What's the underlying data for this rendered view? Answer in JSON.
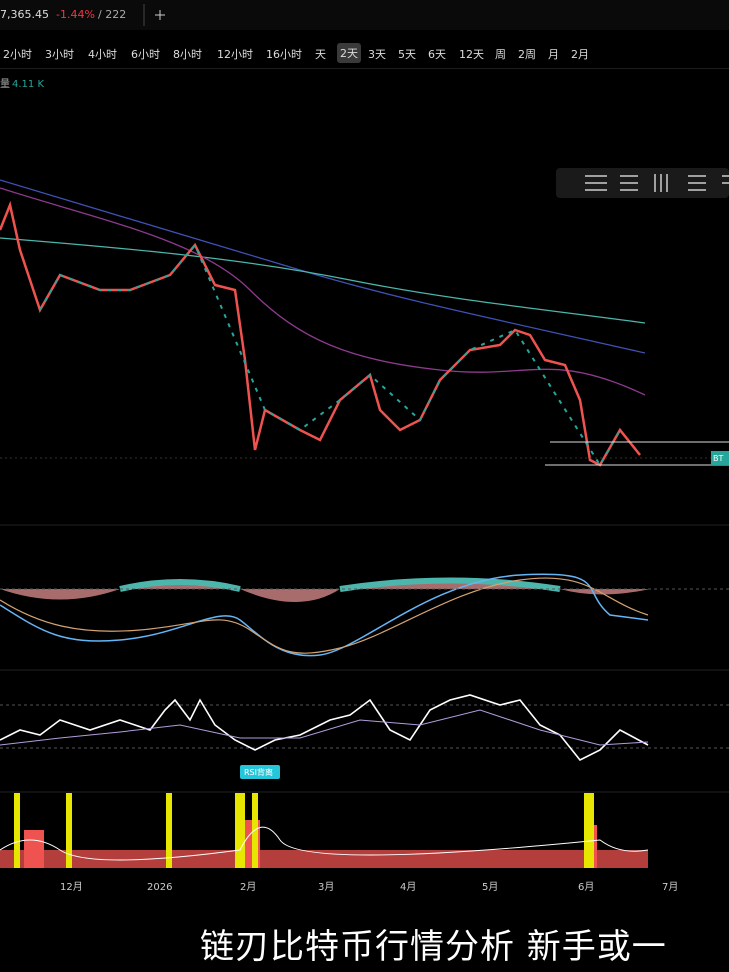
{
  "header": {
    "price": "7,365.45",
    "change": "-1.44%",
    "extra": "/ 222"
  },
  "toolbar": {
    "intervals": [
      "2小时",
      "3小时",
      "4小时",
      "6小时",
      "8小时",
      "12小时",
      "16小时",
      "天",
      "2天",
      "3天",
      "5天",
      "6天",
      "12天",
      "周",
      "2周",
      "月",
      "2月"
    ],
    "active": "2天"
  },
  "chart": {
    "volume_label": "量",
    "volume_value": "4.11 K",
    "price_tag": "BT",
    "rsi_tag": "RSI背离",
    "x_labels": [
      "12月",
      "2026",
      "2月",
      "3月",
      "4月",
      "5月",
      "6月",
      "7月"
    ]
  },
  "caption": "链刃比特币行情分析  新手或一"
}
